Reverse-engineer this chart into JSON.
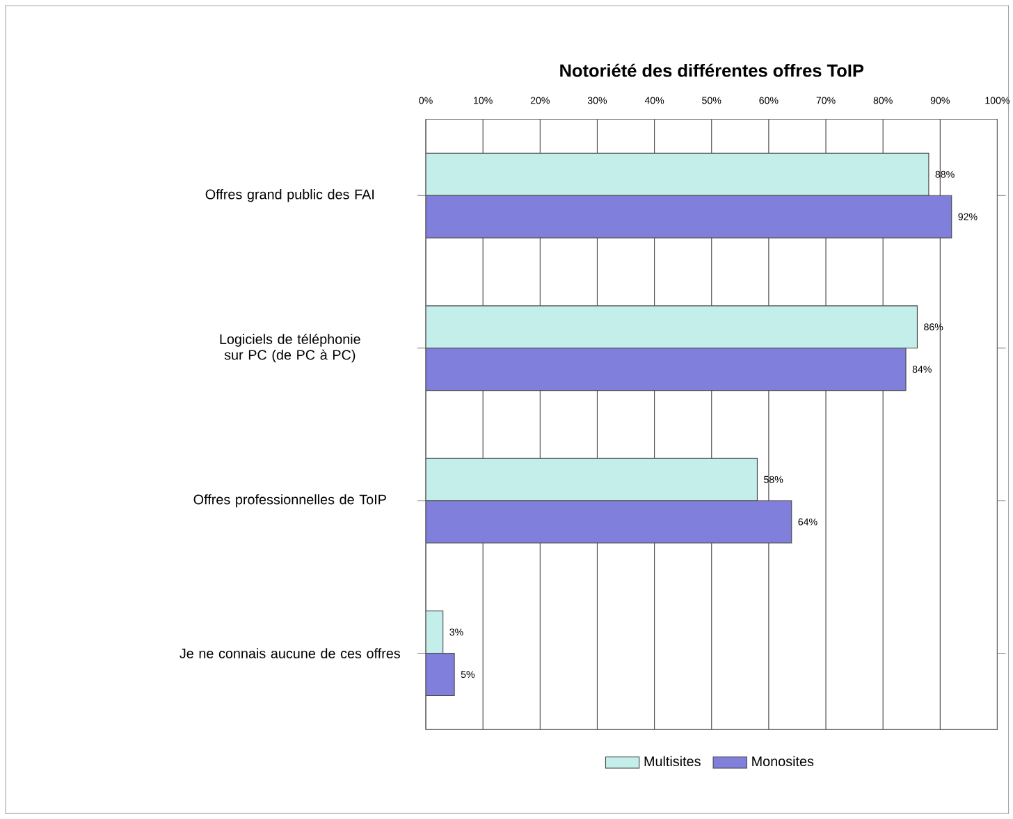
{
  "chart_data": {
    "type": "bar",
    "orientation": "horizontal",
    "title": "Notoriété des différentes offres ToIP",
    "categories": [
      "Offres grand public des FAI",
      "Logiciels de téléphonie sur PC (de PC à PC)",
      "Offres professionnelles de ToIP",
      "Je ne connais aucune de ces offres"
    ],
    "series": [
      {
        "name": "Multisites",
        "color": "#c4eeea",
        "values": [
          88,
          86,
          58,
          3
        ],
        "value_labels": [
          "88%",
          "86%",
          "58%",
          "3%"
        ]
      },
      {
        "name": "Monosites",
        "color": "#8080dc",
        "values": [
          92,
          84,
          64,
          5
        ],
        "value_labels": [
          "92%",
          "84%",
          "64%",
          "5%"
        ]
      }
    ],
    "xlim": [
      0,
      100
    ],
    "xticks": [
      {
        "value": 0,
        "label": "0%"
      },
      {
        "value": 10,
        "label": "10%"
      },
      {
        "value": 20,
        "label": "20%"
      },
      {
        "value": 30,
        "label": "30%"
      },
      {
        "value": 40,
        "label": "40%"
      },
      {
        "value": 50,
        "label": "50%"
      },
      {
        "value": 60,
        "label": "60%"
      },
      {
        "value": 70,
        "label": "70%"
      },
      {
        "value": 80,
        "label": "80%"
      },
      {
        "value": 90,
        "label": "90%"
      },
      {
        "value": 100,
        "label": "100%"
      }
    ],
    "grid": "x",
    "legend": "bottom"
  }
}
